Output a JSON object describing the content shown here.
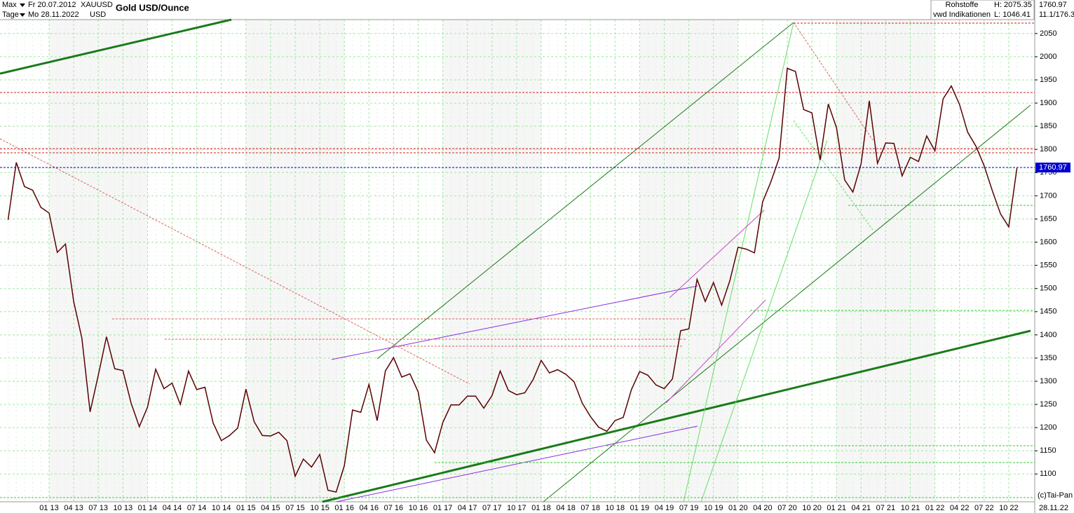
{
  "header": {
    "range": "Max",
    "start": "Fr 20.07.2012",
    "symbol": "XAUUSD",
    "unit": "Tage",
    "end": "Mo 28.11.2022",
    "currency": "USD",
    "group": "Rohstoffe",
    "source": "vwd Indikationen",
    "high": "H: 2075.35",
    "low": "L: 1046.41",
    "ratio": "11.1/176.3",
    "copyright": "(c)Tai-Pan",
    "end_short": "28.11.22"
  },
  "chart_data": {
    "type": "line",
    "title": "Gold USD/Ounce",
    "color": "#5a0000",
    "last_value": 1760.97,
    "grid": true,
    "categories": [
      null,
      null,
      null,
      null,
      null,
      "01 13",
      null,
      null,
      "04 13",
      null,
      null,
      "07 13",
      null,
      null,
      "10 13",
      null,
      null,
      "01 14",
      null,
      null,
      "04 14",
      null,
      null,
      "07 14",
      null,
      null,
      "10 14",
      null,
      null,
      "01 15",
      null,
      null,
      "04 15",
      null,
      null,
      "07 15",
      null,
      null,
      "10 15",
      null,
      null,
      "01 16",
      null,
      null,
      "04 16",
      null,
      null,
      "07 16",
      null,
      null,
      "10 16",
      null,
      null,
      "01 17",
      null,
      null,
      "04 17",
      null,
      null,
      "07 17",
      null,
      null,
      "10 17",
      null,
      null,
      "01 18",
      null,
      null,
      "04 18",
      null,
      null,
      "07 18",
      null,
      null,
      "10 18",
      null,
      null,
      "01 19",
      null,
      null,
      "04 19",
      null,
      null,
      "07 19",
      null,
      null,
      "10 19",
      null,
      null,
      "01 20",
      null,
      null,
      "04 20",
      null,
      null,
      "07 20",
      null,
      null,
      "10 20",
      null,
      null,
      "01 21",
      null,
      null,
      "04 21",
      null,
      null,
      "07 21",
      null,
      null,
      "10 21",
      null,
      null,
      "01 22",
      null,
      null,
      "04 22",
      null,
      null,
      "07 22",
      null,
      null,
      "10 22",
      null
    ],
    "values": [
      1648,
      1772,
      1720,
      1712,
      1675,
      1663,
      1578,
      1596,
      1472,
      1393,
      1234,
      1313,
      1396,
      1327,
      1323,
      1253,
      1202,
      1244,
      1326,
      1284,
      1296,
      1250,
      1322,
      1282,
      1287,
      1210,
      1172,
      1183,
      1199,
      1283,
      1213,
      1183,
      1182,
      1190,
      1172,
      1095,
      1132,
      1115,
      1142,
      1065,
      1061,
      1118,
      1238,
      1233,
      1293,
      1215,
      1322,
      1351,
      1309,
      1316,
      1277,
      1173,
      1146,
      1211,
      1249,
      1249,
      1268,
      1268,
      1242,
      1269,
      1322,
      1280,
      1271,
      1275,
      1303,
      1345,
      1318,
      1325,
      1315,
      1299,
      1253,
      1224,
      1201,
      1192,
      1215,
      1222,
      1282,
      1321,
      1313,
      1292,
      1284,
      1305,
      1409,
      1413,
      1520,
      1472,
      1513,
      1464,
      1517,
      1589,
      1585,
      1577,
      1687,
      1730,
      1781,
      1975,
      1968,
      1886,
      1879,
      1777,
      1898,
      1847,
      1734,
      1708,
      1769,
      1905,
      1770,
      1814,
      1813,
      1743,
      1783,
      1774,
      1829,
      1797,
      1909,
      1937,
      1897,
      1837,
      1807,
      1765,
      1711,
      1661,
      1633,
      1760
    ],
    "ylim": [
      1040,
      2080
    ],
    "yticks": [
      1100,
      1150,
      1200,
      1250,
      1300,
      1350,
      1400,
      1450,
      1500,
      1550,
      1600,
      1650,
      1700,
      1750,
      1800,
      1850,
      1900,
      1950,
      2000,
      2050
    ]
  }
}
